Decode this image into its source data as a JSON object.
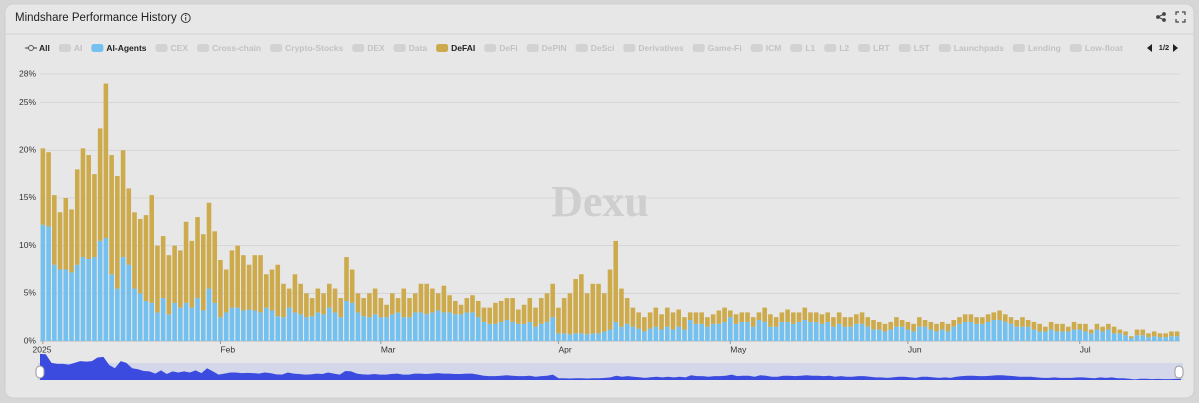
{
  "chart_data": {
    "type": "stacked-bar",
    "title": "Mindshare Performance History",
    "watermark": "Dexu",
    "legend_items": [
      "All",
      "AI",
      "AI-Agents",
      "CEX",
      "Cross-chain",
      "Crypto-Stocks",
      "DEX",
      "Data",
      "DeFAI",
      "DeFi",
      "DePIN",
      "DeSci",
      "Derivatives",
      "Game-Fi",
      "ICM",
      "L1",
      "L2",
      "LRT",
      "LST",
      "Launchpads",
      "Lending",
      "Low-float"
    ],
    "legend_page": "1/2",
    "categories": [
      "2025",
      null,
      null,
      null,
      null,
      null,
      null,
      null,
      null,
      null,
      null,
      null,
      null,
      null,
      null,
      null,
      null,
      null,
      null,
      null,
      null,
      null,
      null,
      null,
      null,
      null,
      null,
      null,
      null,
      null,
      null,
      "Feb",
      null,
      null,
      null,
      null,
      null,
      null,
      null,
      null,
      null,
      null,
      null,
      null,
      null,
      null,
      null,
      null,
      null,
      null,
      null,
      null,
      null,
      null,
      null,
      null,
      null,
      null,
      null,
      "Mar",
      null,
      null,
      null,
      null,
      null,
      null,
      null,
      null,
      null,
      null,
      null,
      null,
      null,
      null,
      null,
      null,
      null,
      null,
      null,
      null,
      null,
      null,
      null,
      null,
      null,
      null,
      null,
      null,
      null,
      null,
      "Apr",
      null,
      null,
      null,
      null,
      null,
      null,
      null,
      null,
      null,
      null,
      null,
      null,
      null,
      null,
      null,
      null,
      null,
      null,
      null,
      null,
      null,
      null,
      null,
      null,
      null,
      null,
      null,
      null,
      null,
      "May",
      null,
      null,
      null,
      null,
      null,
      null,
      null,
      null,
      null,
      null,
      null,
      null,
      null,
      null,
      null,
      null,
      null,
      null,
      null,
      null,
      null,
      null,
      null,
      null,
      null,
      null,
      null,
      null,
      null,
      null,
      "Jun",
      null,
      null,
      null,
      null,
      null,
      null,
      null,
      null,
      null,
      null,
      null,
      null,
      null,
      null,
      null,
      null,
      null,
      null,
      null,
      null,
      null,
      null,
      null,
      null,
      null,
      null,
      null,
      null,
      null,
      "Jul",
      null,
      null,
      null,
      null,
      null,
      null,
      null,
      null,
      null,
      null,
      null,
      null,
      null,
      null,
      null,
      null,
      null
    ],
    "series": [
      {
        "name": "AI-Agents",
        "color": "#74c0ee",
        "values": [
          12.2,
          12,
          8,
          7.5,
          7.5,
          7.2,
          8,
          8.8,
          8.6,
          8.8,
          10.5,
          10.8,
          7,
          5.5,
          8.8,
          8,
          5.5,
          5,
          4.2,
          4,
          3,
          4.5,
          2.8,
          4,
          3.5,
          4,
          3.5,
          4.5,
          3.2,
          5.5,
          4,
          2.5,
          3,
          3.5,
          3.5,
          3.2,
          3.3,
          3.2,
          3,
          3.5,
          3.2,
          2.6,
          2.5,
          3.5,
          3,
          2.8,
          2.5,
          2.6,
          3,
          2.8,
          3.5,
          3,
          2.5,
          4.2,
          4,
          3,
          2.6,
          2.5,
          2.8,
          2.5,
          2.5,
          2.8,
          3,
          2.5,
          2.5,
          3,
          3,
          2.8,
          3,
          3.2,
          3,
          3,
          2.8,
          2.8,
          3,
          3,
          2.5,
          2,
          1.8,
          1.8,
          2,
          2.2,
          2,
          1.8,
          1.8,
          2,
          1.5,
          1.8,
          2,
          2.5,
          0.8,
          0.8,
          0.7,
          0.8,
          0.8,
          0.7,
          0.8,
          0.8,
          1,
          1.2,
          2,
          1.5,
          1.8,
          1.5,
          1.3,
          1,
          1.3,
          1.5,
          1.2,
          1.5,
          1.2,
          1.5,
          1.2,
          2.2,
          1.8,
          1.8,
          1.5,
          1.8,
          1.8,
          2,
          2.5,
          1.8,
          2,
          2,
          1.5,
          2.2,
          2,
          1.5,
          1.5,
          2,
          2,
          1.8,
          2,
          2.2,
          2,
          2,
          1.8,
          2,
          1.5,
          1.8,
          1.5,
          1.5,
          1.8,
          1.8,
          1.5,
          1.2,
          1.2,
          1,
          1.2,
          1.5,
          1.5,
          1.2,
          1,
          1.5,
          1.5,
          1.2,
          1,
          1.2,
          1,
          1.5,
          1.8,
          2,
          2,
          1.8,
          1.8,
          2,
          2.2,
          2.2,
          2,
          1.8,
          1.5,
          1.5,
          1.5,
          1.2,
          1,
          1,
          1.2,
          1,
          1,
          1,
          1.2,
          1.2,
          1,
          0.8,
          1.2,
          1,
          1.2,
          0.8,
          0.8,
          0.6,
          0.3,
          0.6,
          0.6,
          0.4,
          0.5,
          0.4,
          0.4,
          0.5,
          0.5
        ]
      },
      {
        "name": "DeFAI",
        "color": "#cdab4c",
        "values": [
          8,
          7.8,
          7.3,
          6,
          7.5,
          6.6,
          10,
          11.4,
          10.9,
          8.7,
          11.8,
          16.2,
          12.5,
          11.8,
          11.2,
          8,
          8,
          7.8,
          9,
          11.3,
          7,
          6.5,
          6.2,
          6,
          6,
          8.5,
          7,
          8.5,
          8,
          9,
          7.5,
          6,
          4.5,
          6,
          6.5,
          5.8,
          4.7,
          5.8,
          6,
          3.5,
          4.3,
          5.4,
          3.5,
          2,
          4,
          3.2,
          2.5,
          1.9,
          2.5,
          2.2,
          2.5,
          2.5,
          2,
          4.6,
          3.5,
          2,
          1.9,
          2.5,
          2.7,
          2,
          1.3,
          2.2,
          1.5,
          3,
          2,
          2,
          3,
          3.2,
          2.5,
          1.8,
          2.8,
          1.8,
          1.4,
          1,
          1.5,
          1.8,
          1.7,
          1.5,
          1.7,
          2.2,
          2.2,
          2.3,
          2.5,
          1.5,
          2,
          2.5,
          2,
          2.7,
          3,
          3.5,
          2.7,
          3.7,
          4.3,
          5.7,
          6.2,
          4.3,
          5.2,
          5.2,
          4,
          6.3,
          8.5,
          4,
          2.7,
          2,
          1.7,
          1.5,
          1.7,
          2,
          1.6,
          2,
          1.8,
          1.8,
          1.3,
          0.8,
          1.2,
          1.2,
          1,
          1,
          1.4,
          1.5,
          0.7,
          1,
          1,
          1,
          1,
          0.8,
          1.5,
          1.3,
          1,
          1,
          1.3,
          1.2,
          1,
          1.3,
          1,
          1,
          1,
          1,
          1,
          1.2,
          1,
          1,
          1,
          1.2,
          1,
          1,
          0.8,
          0.8,
          0.8,
          1,
          0.7,
          0.8,
          0.8,
          1,
          0.7,
          0.8,
          0.8,
          0.8,
          0.8,
          0.7,
          0.7,
          0.8,
          0.8,
          0.7,
          0.7,
          0.8,
          0.8,
          1,
          0.8,
          0.7,
          0.7,
          1,
          0.7,
          0.8,
          0.8,
          0.5,
          0.8,
          0.8,
          0.8,
          0.5,
          0.8,
          0.6,
          0.8,
          0.4,
          0.6,
          0.5,
          0.6,
          0.7,
          0.4,
          0.4,
          0.2,
          0.6,
          0.6,
          0.4,
          0.5,
          0.4,
          0.4,
          0.5,
          0.5
        ]
      }
    ],
    "ylim": [
      0,
      28
    ],
    "yticks": [
      {
        "value": 0,
        "label": "0%"
      },
      {
        "value": 5,
        "label": "5%"
      },
      {
        "value": 10,
        "label": "10%"
      },
      {
        "value": 15,
        "label": "15%"
      },
      {
        "value": 20,
        "label": "20%"
      },
      {
        "value": 25,
        "label": "25%"
      },
      {
        "value": 28,
        "label": "28%"
      }
    ],
    "grid": true
  }
}
